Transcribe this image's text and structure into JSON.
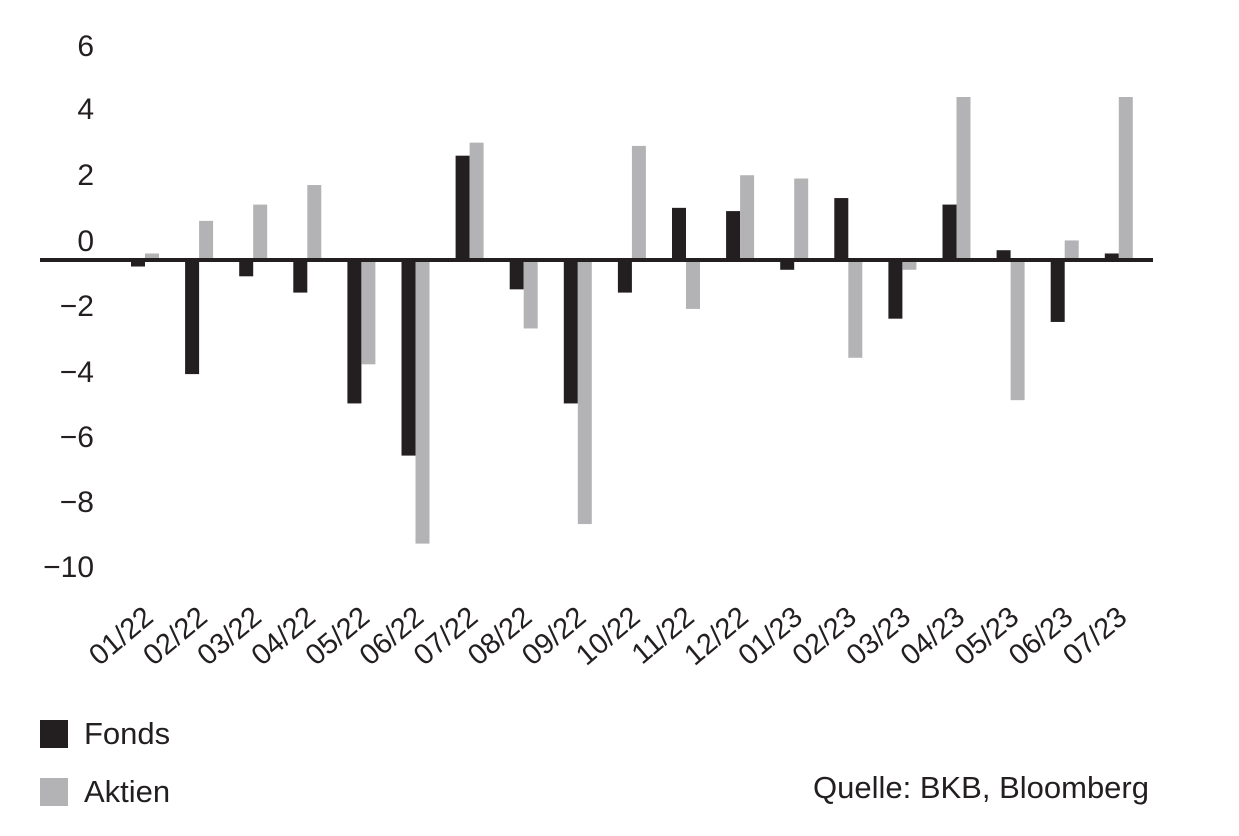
{
  "chart_data": {
    "type": "bar",
    "categories": [
      "01/22",
      "02/22",
      "03/22",
      "04/22",
      "05/22",
      "06/22",
      "07/22",
      "08/22",
      "09/22",
      "10/22",
      "11/22",
      "12/22",
      "01/23",
      "02/23",
      "03/23",
      "04/23",
      "05/23",
      "06/23",
      "07/23"
    ],
    "series": [
      {
        "name": "Fonds",
        "color": "#231f20",
        "values": [
          -0.2,
          -3.5,
          -0.5,
          -1.0,
          -4.4,
          -6.0,
          3.2,
          -0.9,
          -4.4,
          -1.0,
          1.6,
          1.5,
          -0.3,
          1.9,
          -1.8,
          1.7,
          0.3,
          -1.9,
          0.2
        ]
      },
      {
        "name": "Aktien",
        "color": "#b3b3b5",
        "values": [
          0.2,
          1.2,
          1.7,
          2.3,
          -3.2,
          -8.7,
          3.6,
          -2.1,
          -8.1,
          3.5,
          -1.5,
          2.6,
          2.5,
          -3.0,
          -0.3,
          5.0,
          -4.3,
          0.6,
          5.0
        ]
      }
    ],
    "yticks": [
      6,
      4,
      2,
      0,
      -2,
      -4,
      -6,
      -8,
      -10
    ],
    "ylim": [
      -10,
      6
    ],
    "grid": false,
    "legend_position": "bottom-left",
    "source": "Quelle: BKB, Bloomberg"
  }
}
